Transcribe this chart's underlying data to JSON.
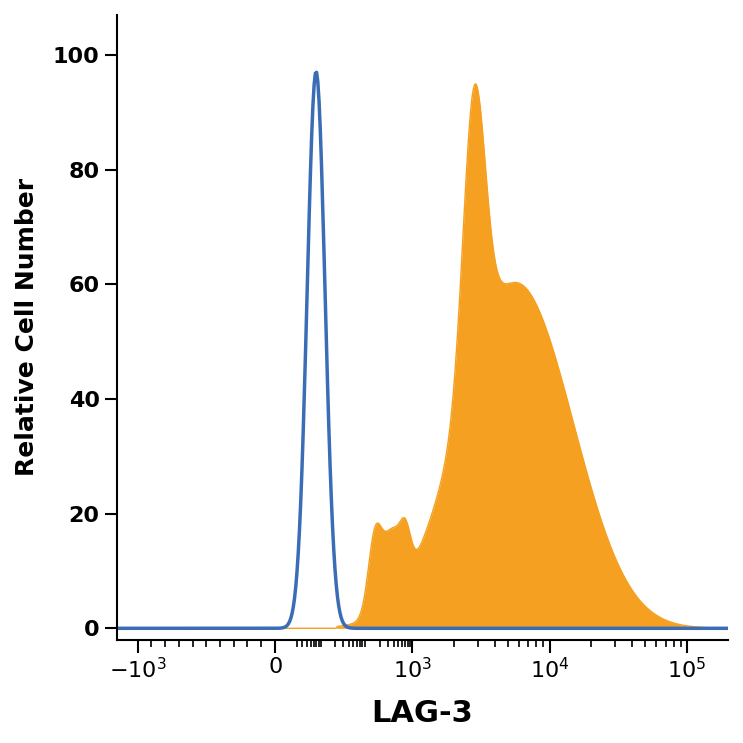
{
  "title": "",
  "xlabel": "LAG-3",
  "ylabel": "Relative Cell Number",
  "ylim": [
    -2,
    107
  ],
  "background_color": "#ffffff",
  "isotype_color": "#3a6db5",
  "filled_color": "#f5a020",
  "isotype_linewidth": 2.5,
  "filled_linewidth": 1.0,
  "xlabel_fontsize": 22,
  "ylabel_fontsize": 18,
  "tick_fontsize": 16,
  "tick_positions": [
    0.0,
    1.0,
    2.0,
    3.0,
    4.0
  ],
  "tick_labels": [
    "-10^3",
    "0",
    "10^3",
    "10^4",
    "10^5"
  ],
  "xlim": [
    -0.15,
    4.3
  ]
}
